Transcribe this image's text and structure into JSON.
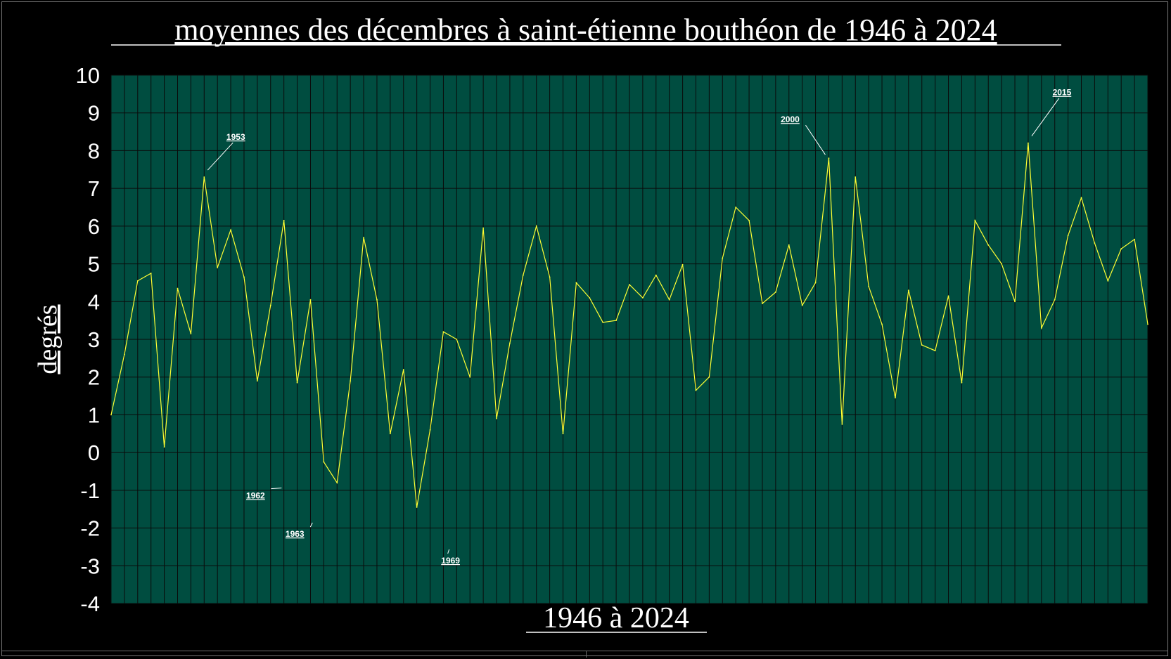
{
  "chart_data": {
    "type": "line",
    "title": "moyennes des décembres à saint-étienne bouthéon de 1946  à  2024",
    "xlabel": "1946  à  2024",
    "ylabel": "degrés",
    "ylim": [
      -4,
      10
    ],
    "yticks": [
      10,
      9,
      8,
      7,
      6,
      5,
      4,
      3,
      2,
      1,
      0,
      -1,
      -2,
      -3,
      -4
    ],
    "grid": true,
    "legend": "none",
    "x": [
      1946,
      1947,
      1948,
      1949,
      1950,
      1951,
      1952,
      1953,
      1954,
      1955,
      1956,
      1957,
      1958,
      1959,
      1960,
      1961,
      1962,
      1963,
      1964,
      1965,
      1966,
      1967,
      1968,
      1969,
      1970,
      1971,
      1972,
      1973,
      1974,
      1975,
      1976,
      1977,
      1978,
      1979,
      1980,
      1981,
      1982,
      1983,
      1984,
      1985,
      1986,
      1987,
      1988,
      1989,
      1990,
      1991,
      1992,
      1993,
      1994,
      1995,
      1996,
      1997,
      1998,
      1999,
      2000,
      2001,
      2002,
      2003,
      2004,
      2005,
      2006,
      2007,
      2008,
      2009,
      2010,
      2011,
      2012,
      2013,
      2014,
      2015,
      2016,
      2017,
      2018,
      2019,
      2020,
      2021,
      2022,
      2023,
      2024
    ],
    "series": [
      {
        "values": [
          1.0,
          2.6,
          4.55,
          4.75,
          0.15,
          4.35,
          3.15,
          7.3,
          4.9,
          5.9,
          4.65,
          1.9,
          3.9,
          6.15,
          1.85,
          4.05,
          -0.25,
          -0.8,
          1.9,
          5.7,
          4.05,
          0.5,
          2.2,
          -1.45,
          0.6,
          3.2,
          3.0,
          2.0,
          5.95,
          0.9,
          2.9,
          4.7,
          6.0,
          4.65,
          0.5,
          4.5,
          4.1,
          3.45,
          3.5,
          4.45,
          4.1,
          4.7,
          4.05,
          4.98,
          1.65,
          2.0,
          5.15,
          6.5,
          6.15,
          3.95,
          4.25,
          5.5,
          3.9,
          4.5,
          7.8,
          0.75,
          7.3,
          4.4,
          3.4,
          1.45,
          4.3,
          2.85,
          2.7,
          4.15,
          1.85,
          6.15,
          5.5,
          5.0,
          4.0,
          8.2,
          3.3,
          4.05,
          5.75,
          6.75,
          5.55,
          4.55,
          5.4,
          5.65,
          3.4
        ]
      }
    ],
    "color_line": "#ffff33",
    "color_plot_bg": "#004d40",
    "color_grid": "#0a0a0a",
    "annotations": [
      {
        "label": "1953",
        "year": 1953
      },
      {
        "label": "1962",
        "year": 1962
      },
      {
        "label": "1963",
        "year": 1963
      },
      {
        "label": "1969",
        "year": 1969
      },
      {
        "label": "2000",
        "year": 2000
      },
      {
        "label": "2015",
        "year": 2015
      }
    ]
  }
}
